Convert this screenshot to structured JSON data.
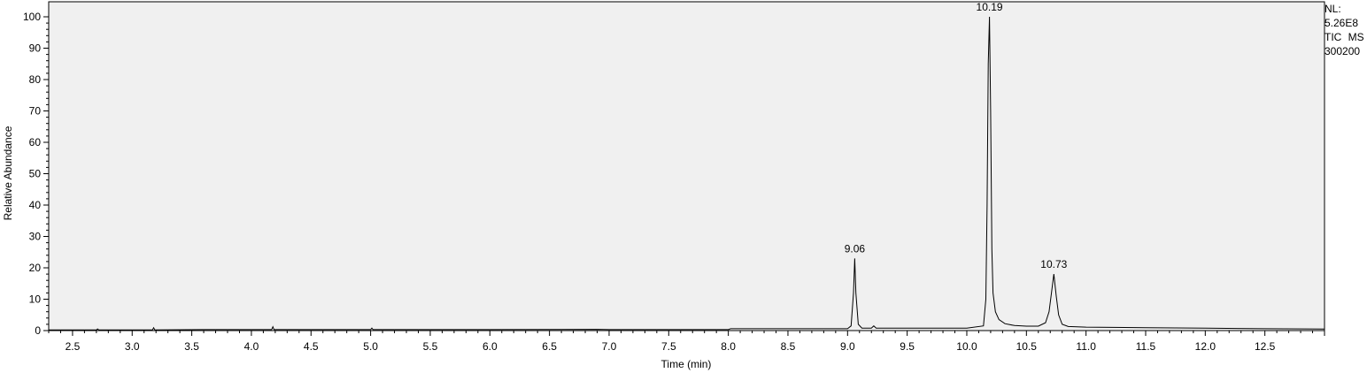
{
  "chart_data": {
    "type": "line",
    "title": "",
    "xlabel": "Time (min)",
    "ylabel": "Relative Abundance",
    "xlim": [
      2.3,
      13.0
    ],
    "ylim": [
      0,
      100
    ],
    "x_ticks": [
      "2.5",
      "3.0",
      "3.5",
      "4.0",
      "4.5",
      "5.0",
      "5.5",
      "6.0",
      "6.5",
      "7.0",
      "7.5",
      "8.0",
      "8.5",
      "9.0",
      "9.5",
      "10.0",
      "10.5",
      "11.0",
      "11.5",
      "12.0",
      "12.5"
    ],
    "y_ticks": [
      "0",
      "10",
      "20",
      "30",
      "40",
      "50",
      "60",
      "70",
      "80",
      "90",
      "100"
    ],
    "grid": false,
    "peak_labels": [
      {
        "x": 9.06,
        "y": 23,
        "label": "9.06"
      },
      {
        "x": 10.19,
        "y": 100,
        "label": "10.19"
      },
      {
        "x": 10.73,
        "y": 18,
        "label": "10.73"
      }
    ],
    "series": [
      {
        "x": [
          2.3,
          2.7,
          2.71,
          2.72,
          3.17,
          3.18,
          3.19,
          3.6,
          4.17,
          4.18,
          4.19,
          5.0,
          5.01,
          5.02,
          6.0,
          6.9,
          7.0,
          7.5,
          8.0,
          8.02,
          8.5,
          9.0,
          9.03,
          9.05,
          9.06,
          9.07,
          9.09,
          9.12,
          9.2,
          9.22,
          9.24,
          9.5,
          10.0,
          10.14,
          10.16,
          10.17,
          10.18,
          10.19,
          10.2,
          10.21,
          10.22,
          10.24,
          10.27,
          10.32,
          10.4,
          10.5,
          10.6,
          10.66,
          10.69,
          10.71,
          10.73,
          10.75,
          10.77,
          10.8,
          10.85,
          11.0,
          11.5,
          12.0,
          12.5,
          13.0
        ],
        "values": [
          0.2,
          0.2,
          0.5,
          0.2,
          0.2,
          0.9,
          0.2,
          0.3,
          0.3,
          1.2,
          0.3,
          0.3,
          0.8,
          0.3,
          0.3,
          0.4,
          0.3,
          0.3,
          0.3,
          0.6,
          0.6,
          0.6,
          1.5,
          12,
          23,
          12,
          2,
          0.8,
          0.8,
          1.5,
          0.8,
          0.8,
          0.8,
          1.5,
          10,
          40,
          85,
          100,
          70,
          26,
          12,
          6,
          3.5,
          2.2,
          1.6,
          1.4,
          1.4,
          2.5,
          6,
          12,
          18,
          11,
          5,
          2,
          1.3,
          1.1,
          0.9,
          0.8,
          0.6,
          0.5
        ]
      }
    ]
  },
  "side_info": {
    "nl_label": "NL:",
    "nl_value": "5.26E8",
    "trace": "TIC  MS",
    "file_id": "300200"
  }
}
